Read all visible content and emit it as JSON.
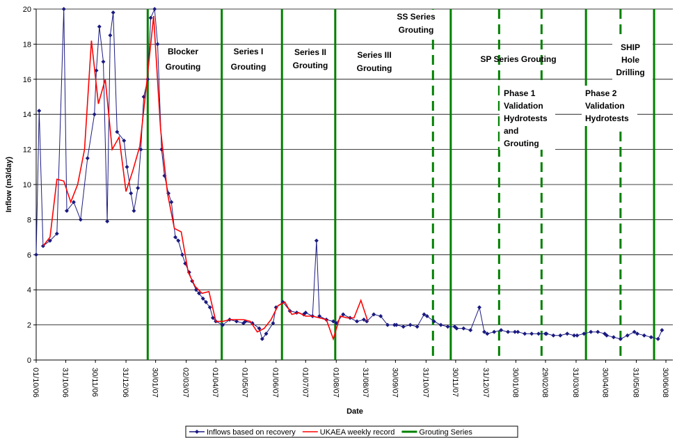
{
  "chart_data": {
    "type": "line",
    "y_label": "Inflow (m3/day)",
    "x_label": "Date",
    "ylim": [
      0,
      20
    ],
    "yticks": [
      0,
      2,
      4,
      6,
      8,
      10,
      12,
      14,
      16,
      18,
      20
    ],
    "xlim": [
      "01/10/06",
      "07/07/08"
    ],
    "xticks": [
      "01/10/06",
      "31/10/06",
      "30/11/06",
      "31/12/06",
      "30/01/07",
      "02/03/07",
      "01/04/07",
      "01/05/07",
      "01/06/07",
      "01/07/07",
      "01/08/07",
      "31/08/07",
      "30/09/07",
      "31/10/07",
      "30/11/07",
      "31/12/07",
      "30/01/08",
      "29/02/08",
      "31/03/08",
      "30/04/08",
      "31/05/08",
      "30/06/08"
    ],
    "grid": true,
    "series": [
      {
        "name": "Inflows based on recovery",
        "color": "#1a1a80",
        "x": [
          "01/10/06",
          "04/10/06",
          "08/10/06",
          "15/10/06",
          "22/10/06",
          "29/10/06",
          "01/11/06",
          "08/11/06",
          "15/11/06",
          "22/11/06",
          "29/11/06",
          "01/12/06",
          "04/12/06",
          "08/12/06",
          "12/12/06",
          "15/12/06",
          "18/12/06",
          "22/12/06",
          "29/12/06",
          "01/01/07",
          "05/01/07",
          "08/01/07",
          "12/01/07",
          "15/01/07",
          "18/01/07",
          "22/01/07",
          "25/01/07",
          "29/01/07",
          "01/02/07",
          "05/02/07",
          "08/02/07",
          "12/02/07",
          "15/02/07",
          "19/02/07",
          "22/02/07",
          "26/02/07",
          "01/03/07",
          "05/03/07",
          "08/03/07",
          "12/03/07",
          "15/03/07",
          "19/03/07",
          "22/03/07",
          "26/03/07",
          "29/03/07",
          "01/04/07",
          "08/04/07",
          "15/04/07",
          "22/04/07",
          "29/04/07",
          "01/05/07",
          "08/05/07",
          "15/05/07",
          "18/05/07",
          "22/05/07",
          "29/05/07",
          "01/06/07",
          "08/06/07",
          "15/06/07",
          "22/06/07",
          "29/06/07",
          "01/07/07",
          "08/07/07",
          "12/07/07",
          "15/07/07",
          "22/07/07",
          "29/07/07",
          "01/08/07",
          "08/08/07",
          "15/08/07",
          "22/08/07",
          "29/08/07",
          "01/09/07",
          "08/09/07",
          "15/09/07",
          "22/09/07",
          "29/09/07",
          "01/10/07",
          "08/10/07",
          "15/10/07",
          "22/10/07",
          "29/10/07",
          "01/11/07",
          "08/11/07",
          "15/11/07",
          "22/11/07",
          "29/11/07",
          "01/12/07",
          "08/12/07",
          "15/12/07",
          "24/12/07",
          "29/12/07",
          "01/01/08",
          "08/01/08",
          "15/01/08",
          "22/01/08",
          "29/01/08",
          "01/02/08",
          "08/02/08",
          "15/02/08",
          "22/02/08",
          "29/02/08",
          "01/03/08",
          "08/03/08",
          "15/03/08",
          "22/03/08",
          "29/03/08",
          "01/04/08",
          "08/04/08",
          "15/04/08",
          "22/04/08",
          "29/04/08",
          "01/05/08",
          "08/05/08",
          "15/05/08",
          "22/05/08",
          "29/05/08",
          "01/06/08",
          "08/06/08",
          "15/06/08",
          "22/06/08",
          "26/06/08"
        ],
        "values": [
          6.0,
          14.2,
          6.5,
          6.8,
          7.2,
          20.0,
          8.5,
          9.0,
          8.0,
          11.5,
          14.0,
          16.5,
          19.0,
          17.0,
          7.9,
          18.5,
          19.8,
          13.0,
          12.5,
          11.0,
          9.5,
          8.5,
          9.8,
          12.0,
          15.0,
          16.0,
          19.5,
          20.0,
          18.0,
          12.0,
          10.5,
          9.5,
          9.0,
          7.0,
          6.8,
          6.0,
          5.5,
          5.0,
          4.5,
          4.0,
          3.8,
          3.5,
          3.3,
          3.0,
          2.4,
          2.2,
          2.0,
          2.3,
          2.2,
          2.1,
          2.2,
          2.1,
          1.8,
          1.2,
          1.5,
          2.1,
          3.0,
          3.3,
          2.8,
          2.7,
          2.6,
          2.7,
          2.5,
          6.8,
          2.5,
          2.3,
          2.2,
          2.1,
          2.6,
          2.4,
          2.2,
          2.3,
          2.2,
          2.6,
          2.5,
          2.0,
          2.0,
          2.0,
          1.9,
          2.0,
          1.9,
          2.6,
          2.5,
          2.2,
          2.0,
          1.9,
          1.9,
          1.8,
          1.8,
          1.7,
          3.0,
          1.6,
          1.5,
          1.6,
          1.7,
          1.6,
          1.6,
          1.6,
          1.5,
          1.5,
          1.5,
          1.5,
          1.5,
          1.4,
          1.4,
          1.5,
          1.4,
          1.4,
          1.5,
          1.6,
          1.6,
          1.5,
          1.4,
          1.3,
          1.2,
          1.4,
          1.6,
          1.5,
          1.4,
          1.3,
          1.2,
          1.7
        ]
      },
      {
        "name": "UKAEA weekly record",
        "color": "#ff0000",
        "x": [
          "08/10/06",
          "15/10/06",
          "22/10/06",
          "29/10/06",
          "05/11/06",
          "12/11/06",
          "19/11/06",
          "26/11/06",
          "03/12/06",
          "10/12/06",
          "17/12/06",
          "24/12/06",
          "31/12/06",
          "07/01/07",
          "14/01/07",
          "21/01/07",
          "28/01/07",
          "04/02/07",
          "11/02/07",
          "18/02/07",
          "25/02/07",
          "04/03/07",
          "11/03/07",
          "18/03/07",
          "25/03/07",
          "01/04/07",
          "08/04/07",
          "15/04/07",
          "22/04/07",
          "29/04/07",
          "06/05/07",
          "13/05/07",
          "20/05/07",
          "27/05/07",
          "03/06/07",
          "10/06/07",
          "17/06/07",
          "24/06/07",
          "01/07/07",
          "08/07/07",
          "15/07/07",
          "22/07/07",
          "29/07/07",
          "05/08/07",
          "12/08/07",
          "19/08/07",
          "26/08/07",
          "02/09/07"
        ],
        "values": [
          6.5,
          7.0,
          10.3,
          10.2,
          9.0,
          10.0,
          12.0,
          18.2,
          14.6,
          16.0,
          12.0,
          12.7,
          9.6,
          10.8,
          12.2,
          15.8,
          19.6,
          13.2,
          9.5,
          7.5,
          7.3,
          5.0,
          4.2,
          3.8,
          3.9,
          2.2,
          2.2,
          2.3,
          2.3,
          2.3,
          2.2,
          1.6,
          1.8,
          2.3,
          3.1,
          3.3,
          2.6,
          2.7,
          2.5,
          2.5,
          2.4,
          2.3,
          1.2,
          2.5,
          2.4,
          2.4,
          3.4,
          2.2
        ]
      }
    ],
    "grouting": {
      "name": "Grouting Series",
      "color": "#008000",
      "x": [
        "22/01/07",
        "07/04/07",
        "07/06/07",
        "31/07/07",
        "07/11/07",
        "25/11/07",
        "13/01/08",
        "25/02/08",
        "10/04/08",
        "15/05/08",
        "18/06/08"
      ],
      "dashed": [
        false,
        false,
        false,
        false,
        true,
        false,
        true,
        true,
        false,
        true,
        false
      ]
    },
    "annotations": [
      {
        "lines": [
          "Blocker",
          "Grouting"
        ],
        "color": "#008000"
      },
      {
        "lines": [
          "Series I",
          "Grouting"
        ],
        "color": "#008000"
      },
      {
        "lines": [
          "Series II",
          "Grouting"
        ],
        "color": "#008000"
      },
      {
        "lines": [
          "Series III",
          "Grouting"
        ],
        "color": "#008000"
      },
      {
        "lines": [
          "SS Series",
          "Grouting"
        ],
        "color": "#008000"
      },
      {
        "lines": [
          "SP Series Grouting"
        ],
        "color": "#008000"
      },
      {
        "lines": [
          "Phase 1",
          "Validation",
          "Hydrotests",
          "and",
          "Grouting"
        ],
        "color": "#0000cc"
      },
      {
        "lines": [
          "Phase 2",
          "Validation",
          "Hydrotests"
        ],
        "color": "#0000cc"
      },
      {
        "lines": [
          "SHIP",
          "Hole",
          "Drilling"
        ],
        "color": "#008000"
      }
    ]
  }
}
